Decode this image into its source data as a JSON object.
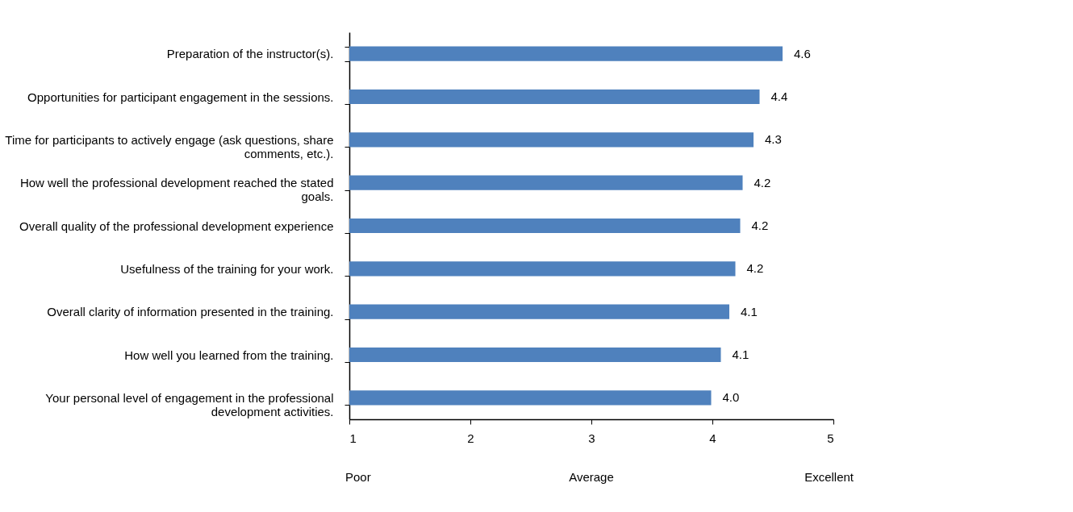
{
  "chart_data": {
    "type": "bar",
    "orientation": "horizontal",
    "categories": [
      "Preparation of the instructor(s).",
      "Opportunities for participant engagement in the sessions.",
      "Time for participants to actively engage (ask questions, share comments, etc.).",
      "How well the professional development reached the stated goals.",
      "Overall quality of the professional development experience",
      "Usefulness of the training for your work.",
      "Overall clarity of information presented in the training.",
      "How well you learned from the training.",
      "Your personal level of engagement in the professional development activities."
    ],
    "values": [
      4.58,
      4.39,
      4.34,
      4.25,
      4.23,
      4.19,
      4.14,
      4.07,
      3.99
    ],
    "value_labels": [
      "4.6",
      "4.4",
      "4.3",
      "4.2",
      "4.2",
      "4.2",
      "4.1",
      "4.1",
      "4.0"
    ],
    "color": "#4f81bd",
    "xlim": [
      1,
      5
    ],
    "xticks": [
      1,
      2,
      3,
      4,
      5
    ],
    "grid": false,
    "annotations": [
      "Poor",
      "Average",
      "Excellent"
    ]
  }
}
